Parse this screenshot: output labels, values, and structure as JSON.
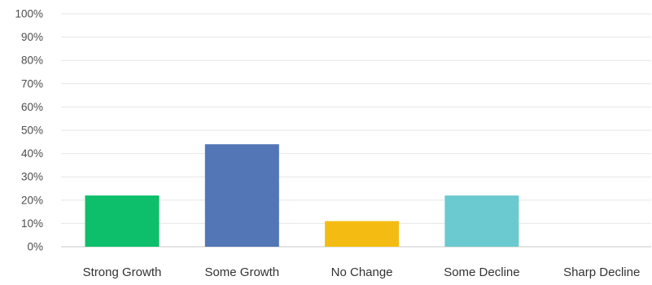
{
  "chart_data": {
    "type": "bar",
    "categories": [
      "Strong Growth",
      "Some Growth",
      "No Change",
      "Some Decline",
      "Sharp Decline"
    ],
    "values": [
      22,
      44,
      11,
      22,
      0
    ],
    "value_unit": "%",
    "ylim": [
      0,
      100
    ],
    "yticks": [
      "0%",
      "10%",
      "20%",
      "30%",
      "40%",
      "50%",
      "60%",
      "70%",
      "80%",
      "90%",
      "100%"
    ],
    "grid": true,
    "colors": [
      "#0dbf6a",
      "#5276b6",
      "#f4bc12",
      "#6bcacf",
      "#d9d9d9"
    ],
    "title": "",
    "xlabel": "",
    "ylabel": ""
  }
}
